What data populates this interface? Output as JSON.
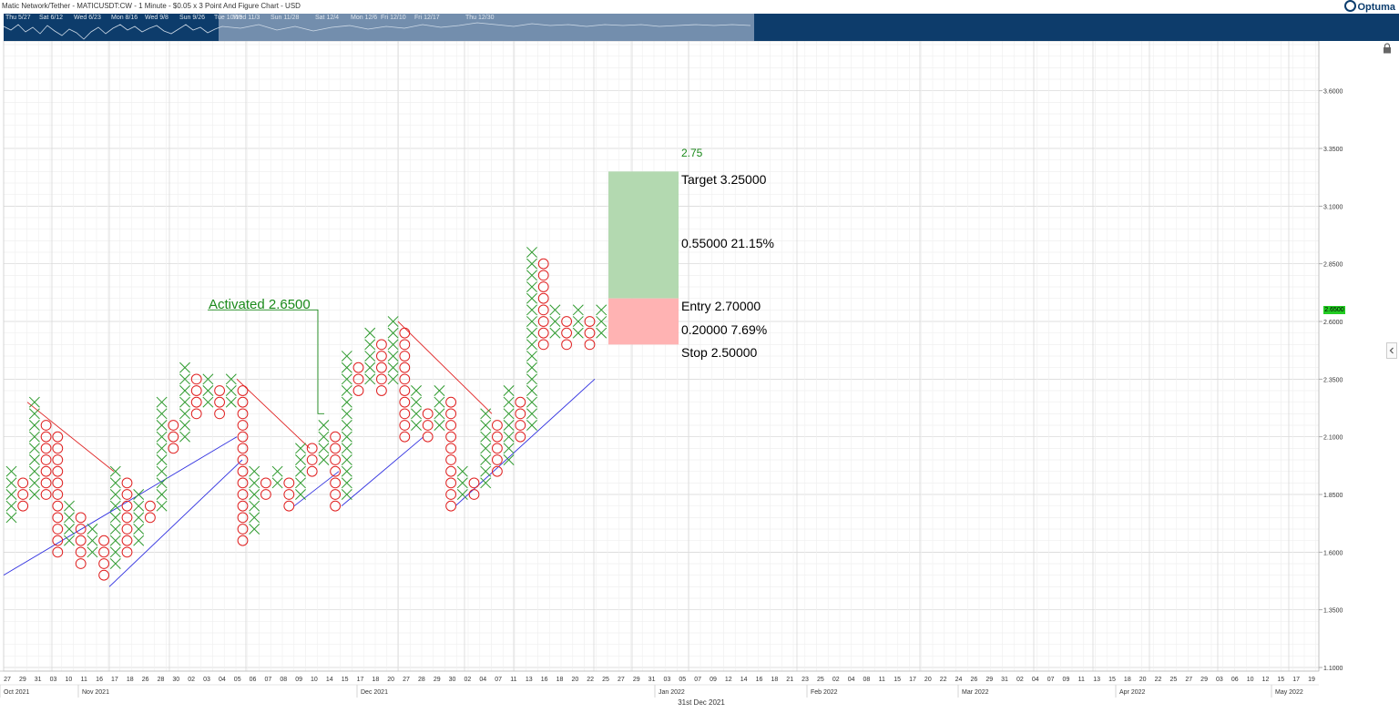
{
  "header": {
    "title": "Matic Network/Tether - MATICUSDT:CW - 1 Minute - $0.05 x 3 Point And Figure Chart - USD",
    "logo_text": "Optuma"
  },
  "navigator": {
    "dates": [
      "Thu 5/27",
      "Sat 6/12",
      "Wed 6/23",
      "Mon 8/16",
      "Wed 9/8",
      "Sun 9/26",
      "Tue 10/19",
      "Wed 11/3",
      "Sun 11/28",
      "Sat 12/4",
      "Mon 12/6",
      "Fri 12/10",
      "Fri 12/17",
      "Thu 12/30"
    ]
  },
  "chart_data": {
    "type": "point-and-figure",
    "box_size": 0.05,
    "reversal": 3,
    "ylim": [
      1.1,
      3.8
    ],
    "y_ticks": [
      "1.1000",
      "1.3500",
      "1.6000",
      "1.8500",
      "2.1000",
      "2.3500",
      "2.6000",
      "2.8500",
      "3.1000",
      "3.3500",
      "3.6000"
    ],
    "last_price_label": "2.6500",
    "columns": [
      {
        "type": "X",
        "low": 1.75,
        "high": 1.95
      },
      {
        "type": "O",
        "low": 1.8,
        "high": 1.9
      },
      {
        "type": "X",
        "low": 1.85,
        "high": 2.25
      },
      {
        "type": "O",
        "low": 1.85,
        "high": 2.15
      },
      {
        "type": "O",
        "low": 1.6,
        "high": 2.1
      },
      {
        "type": "X",
        "low": 1.65,
        "high": 1.8
      },
      {
        "type": "O",
        "low": 1.55,
        "high": 1.75
      },
      {
        "type": "X",
        "low": 1.6,
        "high": 1.7
      },
      {
        "type": "O",
        "low": 1.5,
        "high": 1.65
      },
      {
        "type": "X",
        "low": 1.55,
        "high": 1.95
      },
      {
        "type": "O",
        "low": 1.6,
        "high": 1.9
      },
      {
        "type": "X",
        "low": 1.65,
        "high": 1.85
      },
      {
        "type": "O",
        "low": 1.75,
        "high": 1.8
      },
      {
        "type": "X",
        "low": 1.8,
        "high": 2.25
      },
      {
        "type": "O",
        "low": 2.05,
        "high": 2.15
      },
      {
        "type": "X",
        "low": 2.1,
        "high": 2.4
      },
      {
        "type": "O",
        "low": 2.2,
        "high": 2.35
      },
      {
        "type": "X",
        "low": 2.25,
        "high": 2.35
      },
      {
        "type": "O",
        "low": 2.2,
        "high": 2.3
      },
      {
        "type": "X",
        "low": 2.25,
        "high": 2.35
      },
      {
        "type": "O",
        "low": 1.65,
        "high": 2.3
      },
      {
        "type": "X",
        "low": 1.7,
        "high": 1.95
      },
      {
        "type": "O",
        "low": 1.85,
        "high": 1.9
      },
      {
        "type": "X",
        "low": 1.9,
        "high": 1.95
      },
      {
        "type": "O",
        "low": 1.8,
        "high": 1.9
      },
      {
        "type": "X",
        "low": 1.85,
        "high": 2.05
      },
      {
        "type": "O",
        "low": 1.95,
        "high": 2.05
      },
      {
        "type": "X",
        "low": 2.0,
        "high": 2.15
      },
      {
        "type": "O",
        "low": 1.8,
        "high": 2.1
      },
      {
        "type": "X",
        "low": 1.85,
        "high": 2.45
      },
      {
        "type": "O",
        "low": 2.3,
        "high": 2.4
      },
      {
        "type": "X",
        "low": 2.35,
        "high": 2.55
      },
      {
        "type": "O",
        "low": 2.3,
        "high": 2.5
      },
      {
        "type": "X",
        "low": 2.35,
        "high": 2.6
      },
      {
        "type": "O",
        "low": 2.1,
        "high": 2.55
      },
      {
        "type": "X",
        "low": 2.15,
        "high": 2.3
      },
      {
        "type": "O",
        "low": 2.1,
        "high": 2.2
      },
      {
        "type": "X",
        "low": 2.15,
        "high": 2.3
      },
      {
        "type": "O",
        "low": 1.8,
        "high": 2.25
      },
      {
        "type": "X",
        "low": 1.85,
        "high": 1.95
      },
      {
        "type": "O",
        "low": 1.85,
        "high": 1.9
      },
      {
        "type": "X",
        "low": 1.9,
        "high": 2.2
      },
      {
        "type": "O",
        "low": 1.95,
        "high": 2.15
      },
      {
        "type": "X",
        "low": 2.0,
        "high": 2.3
      },
      {
        "type": "O",
        "low": 2.1,
        "high": 2.25
      },
      {
        "type": "X",
        "low": 2.15,
        "high": 2.9
      },
      {
        "type": "O",
        "low": 2.5,
        "high": 2.85
      },
      {
        "type": "X",
        "low": 2.55,
        "high": 2.65
      },
      {
        "type": "O",
        "low": 2.5,
        "high": 2.6
      },
      {
        "type": "X",
        "low": 2.55,
        "high": 2.65
      },
      {
        "type": "O",
        "low": 2.5,
        "high": 2.6
      },
      {
        "type": "X",
        "low": 2.55,
        "high": 2.65
      }
    ],
    "x_tick_labels": [
      "27",
      "29",
      "31",
      "03",
      "10",
      "11",
      "16",
      "17",
      "18",
      "26",
      "28",
      "30",
      "02",
      "03",
      "04",
      "05",
      "06",
      "07",
      "08",
      "09",
      "10",
      "14",
      "15",
      "17",
      "18",
      "20",
      "27",
      "28",
      "29",
      "30",
      "02",
      "04",
      "07",
      "11",
      "13",
      "16",
      "18",
      "20",
      "22",
      "25",
      "27",
      "29",
      "31",
      "03",
      "05",
      "07",
      "09",
      "12",
      "14",
      "16",
      "18",
      "21",
      "23",
      "25",
      "02",
      "04",
      "08",
      "11",
      "15",
      "17",
      "20",
      "22",
      "24",
      "26",
      "29",
      "31",
      "02",
      "04",
      "07",
      "09",
      "11",
      "13",
      "15",
      "18",
      "20",
      "22",
      "25",
      "27",
      "29",
      "03",
      "06",
      "10",
      "12",
      "15",
      "17",
      "19"
    ],
    "x_month_labels": [
      "Oct 2021",
      "Nov 2021",
      "Dec 2021",
      "Jan 2022",
      "Feb 2022",
      "Mar 2022",
      "Apr 2022",
      "May 2022"
    ],
    "bottom_label": "31st Dec 2021",
    "trade_box": {
      "target": 3.25,
      "entry": 2.7,
      "stop": 2.5,
      "target_label": "Target  3.25000",
      "reward_label": "0.55000   21.15%",
      "entry_label": "Entry   2.70000",
      "risk_label": "0.20000   7.69%",
      "stop_label": "Stop   2.50000",
      "top_label": "2.75"
    },
    "activation": {
      "label": "Activated 2.6500",
      "price": 2.65
    },
    "colors": {
      "x_mark": "#2e9a2e",
      "o_mark": "#e02020",
      "support_line": "#3030e0",
      "resistance_line": "#e02020",
      "target_zone": "#b3d9b0",
      "stop_zone": "#ffb3b3",
      "grid": "#e3e3e3",
      "navigator": "#0d3c6b",
      "price_badge": "#22cc22"
    }
  }
}
